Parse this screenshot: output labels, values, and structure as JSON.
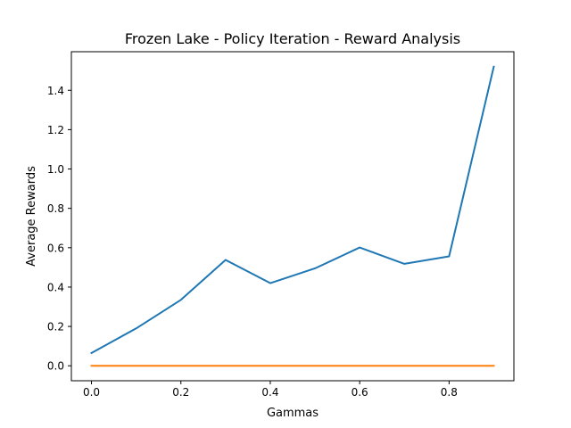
{
  "chart_data": {
    "type": "line",
    "title": "Frozen Lake - Policy Iteration - Reward Analysis",
    "xlabel": "Gammas",
    "ylabel": "Average Rewards",
    "x": [
      0.0,
      0.1,
      0.2,
      0.3,
      0.4,
      0.5,
      0.6,
      0.7,
      0.8,
      0.9
    ],
    "series": [
      {
        "color": "#1f77b4",
        "values": [
          0.065,
          0.19,
          0.335,
          0.538,
          0.42,
          0.495,
          0.601,
          0.518,
          0.556,
          1.52
        ]
      },
      {
        "color": "#ff7f0e",
        "values": [
          0.0,
          0.0,
          0.0,
          0.0,
          0.0,
          0.0,
          0.0,
          0.0,
          0.0,
          0.0
        ]
      }
    ],
    "xlim": [
      -0.045,
      0.945
    ],
    "ylim": [
      -0.076,
      1.596
    ],
    "xticks": [
      0.0,
      0.2,
      0.4,
      0.6,
      0.8
    ],
    "xtick_labels": [
      "0.0",
      "0.2",
      "0.4",
      "0.6",
      "0.8"
    ],
    "yticks": [
      0.0,
      0.2,
      0.4,
      0.6,
      0.8,
      1.0,
      1.2,
      1.4
    ],
    "ytick_labels": [
      "0.0",
      "0.2",
      "0.4",
      "0.6",
      "0.8",
      "1.0",
      "1.2",
      "1.4"
    ],
    "grid": false,
    "legend": "none"
  }
}
